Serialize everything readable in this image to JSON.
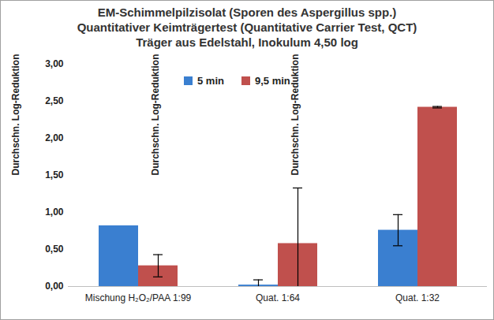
{
  "chart_data": {
    "type": "bar",
    "title": "EM-Schimmelpilzisolat (Sporen des Aspergillus spp.)",
    "subtitle": [
      "Quantitativer Keimträgertest (Quantitative Carrier Test, QCT)",
      "Träger aus Edelstahl, Inokulum 4,50 log"
    ],
    "y_label": "Durchschn. Log-Reduktion",
    "categories": [
      "Mischung H₂O₂/PAA 1:99",
      "Quat. 1:64",
      "Quat. 1:32"
    ],
    "series": [
      {
        "name": "5 min",
        "color": "#3a7fd0",
        "values": [
          0.82,
          0.02,
          0.76
        ],
        "errors": [
          null,
          0.07,
          0.21
        ]
      },
      {
        "name": "9,5 min",
        "color": "#c0504d",
        "values": [
          0.28,
          0.58,
          2.42
        ],
        "errors": [
          0.15,
          0.75,
          0.01
        ]
      }
    ],
    "ylim": [
      0,
      3
    ],
    "yticks": [
      {
        "value": 0,
        "label": "0,00"
      },
      {
        "value": 0.5,
        "label": "0,50"
      },
      {
        "value": 1,
        "label": "1,00"
      },
      {
        "value": 1.5,
        "label": "1,50"
      },
      {
        "value": 2,
        "label": "2,00"
      },
      {
        "value": 2.5,
        "label": "2,50"
      },
      {
        "value": 3,
        "label": "3,00"
      }
    ],
    "grid": false,
    "legend": "top"
  }
}
